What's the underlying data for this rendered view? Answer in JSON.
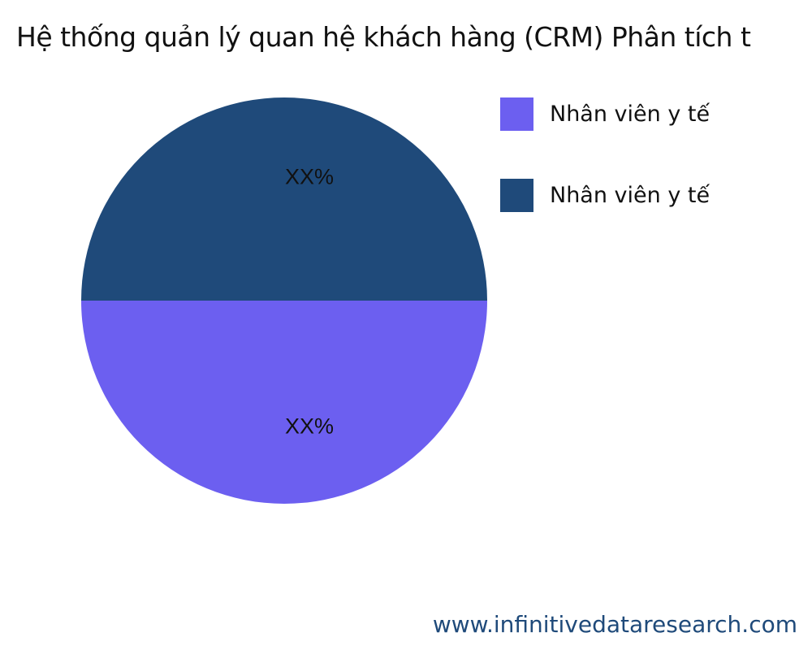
{
  "chart_data": {
    "type": "pie",
    "title": "Hệ thống quản lý quan hệ khách hàng (CRM) Phân tích t",
    "slices": [
      {
        "name": "Nhân viên y tế",
        "value": 50,
        "label": "XX%",
        "color": "#6c5ff0"
      },
      {
        "name": "Nhân viên y tế",
        "value": 50,
        "label": "XX%",
        "color": "#1f4a7a"
      }
    ],
    "legend_position": "right"
  },
  "footer": "www.infinitivedataresearch.com"
}
